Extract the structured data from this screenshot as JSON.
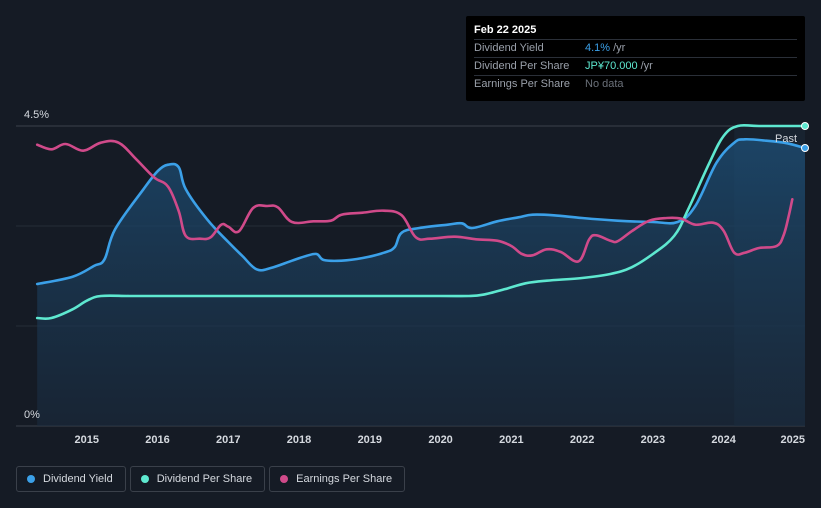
{
  "tooltip": {
    "date": "Feb 22 2025",
    "rows": [
      {
        "label": "Dividend Yield",
        "value": "4.1%",
        "unit": "/yr",
        "color": "#3ba0e8"
      },
      {
        "label": "Dividend Per Share",
        "value": "JP¥70.000",
        "unit": "/yr",
        "color": "#5ee8d0"
      },
      {
        "label": "Earnings Per Share",
        "value": "No data",
        "unit": "",
        "color": "#6b717a"
      }
    ]
  },
  "chart_data": {
    "type": "line",
    "y_axis": {
      "min": 0,
      "max": 4.5,
      "top_label": "4.5%",
      "bottom_label": "0%"
    },
    "x_axis": {
      "range": [
        2014.0,
        2025.15
      ],
      "ticks": [
        "2015",
        "2016",
        "2017",
        "2018",
        "2019",
        "2020",
        "2021",
        "2022",
        "2023",
        "2024",
        "2025"
      ]
    },
    "past_label": "Past",
    "past_start": 2024.15,
    "grid": true,
    "legend_placement": "bottom-left",
    "series": [
      {
        "name": "Dividend Yield",
        "color": "#3ba0e8",
        "filled": true,
        "points": [
          [
            2014.3,
            2.13
          ],
          [
            2014.8,
            2.24
          ],
          [
            2015.1,
            2.4
          ],
          [
            2015.25,
            2.5
          ],
          [
            2015.4,
            2.95
          ],
          [
            2015.8,
            3.55
          ],
          [
            2016.0,
            3.82
          ],
          [
            2016.15,
            3.92
          ],
          [
            2016.3,
            3.88
          ],
          [
            2016.4,
            3.55
          ],
          [
            2016.7,
            3.1
          ],
          [
            2017.0,
            2.76
          ],
          [
            2017.2,
            2.55
          ],
          [
            2017.4,
            2.35
          ],
          [
            2017.6,
            2.37
          ],
          [
            2017.9,
            2.48
          ],
          [
            2018.1,
            2.55
          ],
          [
            2018.25,
            2.58
          ],
          [
            2018.35,
            2.49
          ],
          [
            2018.6,
            2.48
          ],
          [
            2018.9,
            2.52
          ],
          [
            2019.2,
            2.6
          ],
          [
            2019.35,
            2.68
          ],
          [
            2019.45,
            2.9
          ],
          [
            2019.7,
            2.97
          ],
          [
            2020.1,
            3.02
          ],
          [
            2020.3,
            3.04
          ],
          [
            2020.45,
            2.97
          ],
          [
            2020.8,
            3.07
          ],
          [
            2021.1,
            3.13
          ],
          [
            2021.3,
            3.17
          ],
          [
            2021.6,
            3.16
          ],
          [
            2022.0,
            3.12
          ],
          [
            2022.5,
            3.08
          ],
          [
            2023.0,
            3.06
          ],
          [
            2023.35,
            3.06
          ],
          [
            2023.6,
            3.3
          ],
          [
            2023.9,
            3.95
          ],
          [
            2024.15,
            4.25
          ],
          [
            2024.3,
            4.3
          ],
          [
            2024.6,
            4.28
          ],
          [
            2024.9,
            4.24
          ],
          [
            2025.15,
            4.17
          ]
        ]
      },
      {
        "name": "Dividend Per Share",
        "color": "#5ee8d0",
        "filled": false,
        "points": [
          [
            2014.3,
            1.62
          ],
          [
            2014.5,
            1.62
          ],
          [
            2014.8,
            1.75
          ],
          [
            2015.0,
            1.88
          ],
          [
            2015.2,
            1.95
          ],
          [
            2015.6,
            1.95
          ],
          [
            2016.0,
            1.95
          ],
          [
            2017.0,
            1.95
          ],
          [
            2018.0,
            1.95
          ],
          [
            2019.0,
            1.95
          ],
          [
            2020.0,
            1.95
          ],
          [
            2020.4,
            1.95
          ],
          [
            2020.6,
            1.97
          ],
          [
            2020.9,
            2.05
          ],
          [
            2021.2,
            2.14
          ],
          [
            2021.5,
            2.18
          ],
          [
            2022.0,
            2.22
          ],
          [
            2022.4,
            2.28
          ],
          [
            2022.7,
            2.38
          ],
          [
            2023.0,
            2.58
          ],
          [
            2023.3,
            2.85
          ],
          [
            2023.5,
            3.25
          ],
          [
            2023.8,
            3.95
          ],
          [
            2024.0,
            4.35
          ],
          [
            2024.2,
            4.5
          ],
          [
            2024.5,
            4.5
          ],
          [
            2025.15,
            4.5
          ]
        ]
      },
      {
        "name": "Earnings Per Share",
        "color": "#d04a8a",
        "filled": false,
        "points": [
          [
            2014.3,
            4.22
          ],
          [
            2014.5,
            4.15
          ],
          [
            2014.7,
            4.23
          ],
          [
            2014.95,
            4.13
          ],
          [
            2015.2,
            4.25
          ],
          [
            2015.45,
            4.25
          ],
          [
            2015.7,
            4.0
          ],
          [
            2015.95,
            3.73
          ],
          [
            2016.15,
            3.59
          ],
          [
            2016.3,
            3.22
          ],
          [
            2016.4,
            2.85
          ],
          [
            2016.6,
            2.81
          ],
          [
            2016.75,
            2.83
          ],
          [
            2016.9,
            3.02
          ],
          [
            2017.0,
            2.99
          ],
          [
            2017.15,
            2.92
          ],
          [
            2017.35,
            3.27
          ],
          [
            2017.55,
            3.3
          ],
          [
            2017.7,
            3.28
          ],
          [
            2017.9,
            3.06
          ],
          [
            2018.2,
            3.07
          ],
          [
            2018.45,
            3.08
          ],
          [
            2018.6,
            3.17
          ],
          [
            2018.9,
            3.2
          ],
          [
            2019.2,
            3.23
          ],
          [
            2019.45,
            3.16
          ],
          [
            2019.65,
            2.83
          ],
          [
            2019.85,
            2.81
          ],
          [
            2020.2,
            2.84
          ],
          [
            2020.5,
            2.8
          ],
          [
            2020.8,
            2.78
          ],
          [
            2021.0,
            2.7
          ],
          [
            2021.15,
            2.58
          ],
          [
            2021.3,
            2.56
          ],
          [
            2021.5,
            2.65
          ],
          [
            2021.7,
            2.61
          ],
          [
            2021.95,
            2.47
          ],
          [
            2022.1,
            2.8
          ],
          [
            2022.2,
            2.86
          ],
          [
            2022.4,
            2.78
          ],
          [
            2022.5,
            2.77
          ],
          [
            2022.7,
            2.92
          ],
          [
            2022.95,
            3.08
          ],
          [
            2023.2,
            3.12
          ],
          [
            2023.4,
            3.11
          ],
          [
            2023.6,
            3.02
          ],
          [
            2023.85,
            3.05
          ],
          [
            2024.0,
            2.93
          ],
          [
            2024.15,
            2.6
          ],
          [
            2024.3,
            2.6
          ],
          [
            2024.5,
            2.67
          ],
          [
            2024.75,
            2.7
          ],
          [
            2024.85,
            2.87
          ],
          [
            2024.92,
            3.15
          ],
          [
            2024.97,
            3.4
          ]
        ]
      }
    ]
  },
  "legend": [
    {
      "label": "Dividend Yield",
      "color": "#3ba0e8"
    },
    {
      "label": "Dividend Per Share",
      "color": "#5ee8d0"
    },
    {
      "label": "Earnings Per Share",
      "color": "#d04a8a"
    }
  ]
}
